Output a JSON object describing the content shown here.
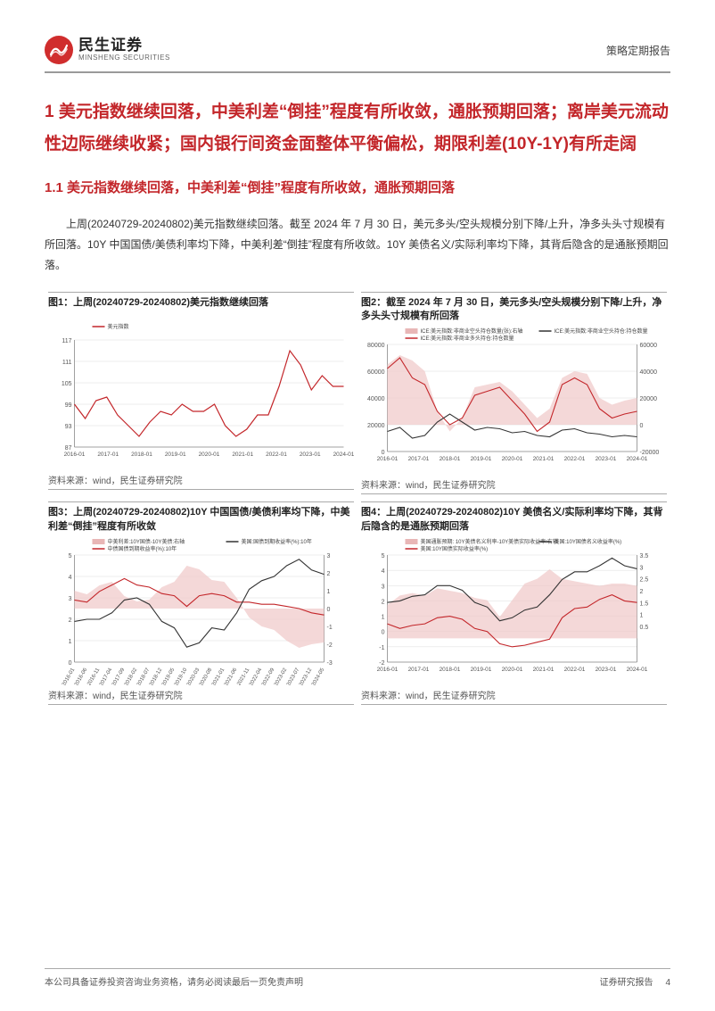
{
  "header": {
    "logo_cn": "民生证券",
    "logo_en": "MINSHENG SECURITIES",
    "report_type": "策略定期报告"
  },
  "headings": {
    "h1": "1 美元指数继续回落，中美利差“倒挂”程度有所收敛，通胀预期回落；离岸美元流动性边际继续收紧；国内银行间资金面整体平衡偏松，期限利差(10Y-1Y)有所走阔",
    "h2": "1.1 美元指数继续回落，中美利差“倒挂”程度有所收敛，通胀预期回落"
  },
  "paragraph": "上周(20240729-20240802)美元指数继续回落。截至 2024 年 7 月 30 日，美元多头/空头规模分别下降/上升，净多头头寸规模有所回落。10Y 中国国债/美债利率均下降，中美利差“倒挂”程度有所收敛。10Y 美债名义/实际利率均下降，其背后隐含的是通胀预期回落。",
  "figures": {
    "fig1": {
      "title": "图1：上周(20240729-20240802)美元指数继续回落",
      "source": "资料来源：wind，民生证券研究院",
      "chart": {
        "type": "line",
        "legend": [
          "美元指数"
        ],
        "legend_colors": [
          "#c3262a"
        ],
        "ylim": [
          87,
          117
        ],
        "ytick_step": 6,
        "yticks": [
          87,
          93,
          99,
          105,
          111,
          117
        ],
        "xticks": [
          "2016-01",
          "2017-01",
          "2018-01",
          "2019-01",
          "2020-01",
          "2021-01",
          "2022-01",
          "2023-01",
          "2024-01"
        ],
        "background": "#ffffff",
        "grid_color": "#dcdcdc",
        "axis_color": "#888888",
        "series": [
          {
            "color": "#c3262a",
            "width": 1.2,
            "x": [
              0,
              0.04,
              0.08,
              0.12,
              0.16,
              0.2,
              0.24,
              0.28,
              0.32,
              0.36,
              0.4,
              0.44,
              0.48,
              0.52,
              0.56,
              0.6,
              0.64,
              0.68,
              0.72,
              0.76,
              0.8,
              0.84,
              0.88,
              0.92,
              0.96,
              1.0
            ],
            "y": [
              99,
              95,
              100,
              101,
              96,
              93,
              90,
              94,
              97,
              96,
              99,
              97,
              97,
              99,
              93,
              90,
              92,
              96,
              96,
              104,
              114,
              110,
              103,
              107,
              104,
              104
            ]
          }
        ]
      }
    },
    "fig2": {
      "title": "图2：截至 2024 年 7 月 30 日，美元多头/空头规模分别下降/上升，净多头头寸规模有所回落",
      "source": "资料来源：wind，民生证券研究院",
      "chart": {
        "type": "area-dual-axis",
        "legend": [
          "ICE:美元指数:非商业空头持仓数量(张):右轴",
          "ICE:美元指数:非商业多头持仓:持仓数量",
          "ICE:美元指数:非商业空头持仓:持仓数量"
        ],
        "legend_colors": [
          "#e8b6b6",
          "#c3262a",
          "#333333"
        ],
        "ylim_left": [
          0,
          80000
        ],
        "ytick_left": [
          0,
          20000,
          40000,
          60000,
          80000
        ],
        "ylim_right": [
          -20000,
          60000
        ],
        "ytick_right": [
          -20000,
          0,
          20000,
          40000,
          60000
        ],
        "xticks": [
          "2016-01",
          "2017-01",
          "2018-01",
          "2019-01",
          "2020-01",
          "2021-01",
          "2022-01",
          "2023-01",
          "2024-01"
        ],
        "background": "#ffffff",
        "grid_color": "#dcdcdc",
        "axis_color": "#888888",
        "area": {
          "color": "#f0c8c8",
          "opacity": 0.7,
          "x": [
            0,
            0.05,
            0.1,
            0.15,
            0.2,
            0.25,
            0.3,
            0.35,
            0.4,
            0.45,
            0.5,
            0.55,
            0.6,
            0.65,
            0.7,
            0.75,
            0.8,
            0.85,
            0.9,
            0.95,
            1.0
          ],
          "y": [
            45000,
            52000,
            48000,
            40000,
            10000,
            -5000,
            5000,
            28000,
            30000,
            32000,
            25000,
            15000,
            5000,
            12000,
            35000,
            40000,
            38000,
            20000,
            15000,
            18000,
            20000
          ]
        },
        "series": [
          {
            "color": "#c3262a",
            "width": 1.1,
            "x": [
              0,
              0.05,
              0.1,
              0.15,
              0.2,
              0.25,
              0.3,
              0.35,
              0.4,
              0.45,
              0.5,
              0.55,
              0.6,
              0.65,
              0.7,
              0.75,
              0.8,
              0.85,
              0.9,
              0.95,
              1.0
            ],
            "y": [
              62000,
              70000,
              55000,
              50000,
              30000,
              20000,
              25000,
              42000,
              45000,
              48000,
              38000,
              28000,
              15000,
              22000,
              50000,
              55000,
              50000,
              32000,
              25000,
              28000,
              30000
            ]
          },
          {
            "color": "#333333",
            "width": 1.1,
            "x": [
              0,
              0.05,
              0.1,
              0.15,
              0.2,
              0.25,
              0.3,
              0.35,
              0.4,
              0.45,
              0.5,
              0.55,
              0.6,
              0.65,
              0.7,
              0.75,
              0.8,
              0.85,
              0.9,
              0.95,
              1.0
            ],
            "y": [
              15000,
              18000,
              10000,
              12000,
              22000,
              28000,
              22000,
              16000,
              18000,
              17000,
              14000,
              15000,
              12000,
              11000,
              16000,
              17000,
              14000,
              13000,
              11000,
              12000,
              11000
            ]
          }
        ]
      }
    },
    "fig3": {
      "title": "图3：上周(20240729-20240802)10Y 中国国债/美债利率均下降，中美利差“倒挂”程度有所收敛",
      "source": "资料来源：wind，民生证券研究院",
      "chart": {
        "type": "area-dual-axis",
        "legend": [
          "中美利差:10Y国债-10Y美债:右轴",
          "中债国债到期收益率(%):10年",
          "美国:国债到期收益率(%):10年"
        ],
        "legend_colors": [
          "#e8b6b6",
          "#c3262a",
          "#333333"
        ],
        "ylim_left": [
          0,
          5
        ],
        "ytick_left": [
          0,
          1,
          2,
          3,
          4,
          5
        ],
        "ylim_right": [
          -3,
          3
        ],
        "ytick_right": [
          -3,
          -2,
          -1,
          0,
          1,
          2,
          3
        ],
        "xticks": [
          "2016-01",
          "2016-06",
          "2016-11",
          "2017-04",
          "2017-09",
          "2018-02",
          "2018-07",
          "2018-12",
          "2019-05",
          "2019-10",
          "2020-03",
          "2020-08",
          "2021-01",
          "2021-06",
          "2021-11",
          "2022-04",
          "2022-09",
          "2023-02",
          "2023-07",
          "2023-12",
          "2024-05"
        ],
        "xticks_rot": -60,
        "background": "#ffffff",
        "grid_color": "#dcdcdc",
        "axis_color": "#888888",
        "area": {
          "color": "#f0c8c8",
          "opacity": 0.7,
          "x": [
            0,
            0.05,
            0.1,
            0.15,
            0.2,
            0.25,
            0.3,
            0.35,
            0.4,
            0.45,
            0.5,
            0.55,
            0.6,
            0.65,
            0.7,
            0.75,
            0.8,
            0.85,
            0.9,
            0.95,
            1.0
          ],
          "y": [
            1.0,
            0.8,
            1.3,
            1.5,
            0.7,
            0.4,
            0.5,
            1.2,
            1.5,
            2.4,
            2.2,
            1.6,
            1.5,
            0.6,
            -0.5,
            -1.0,
            -1.2,
            -1.8,
            -2.2,
            -2.0,
            -1.9
          ]
        },
        "series": [
          {
            "color": "#c3262a",
            "width": 1.1,
            "x": [
              0,
              0.05,
              0.1,
              0.15,
              0.2,
              0.25,
              0.3,
              0.35,
              0.4,
              0.45,
              0.5,
              0.55,
              0.6,
              0.65,
              0.7,
              0.75,
              0.8,
              0.85,
              0.9,
              0.95,
              1.0
            ],
            "y": [
              2.9,
              2.8,
              3.3,
              3.6,
              3.9,
              3.6,
              3.5,
              3.2,
              3.1,
              2.6,
              3.1,
              3.2,
              3.1,
              2.8,
              2.8,
              2.7,
              2.7,
              2.6,
              2.5,
              2.3,
              2.2
            ]
          },
          {
            "color": "#333333",
            "width": 1.1,
            "x": [
              0,
              0.05,
              0.1,
              0.15,
              0.2,
              0.25,
              0.3,
              0.35,
              0.4,
              0.45,
              0.5,
              0.55,
              0.6,
              0.65,
              0.7,
              0.75,
              0.8,
              0.85,
              0.9,
              0.95,
              1.0
            ],
            "y": [
              1.9,
              2.0,
              2.0,
              2.3,
              2.9,
              3.0,
              2.7,
              1.9,
              1.6,
              0.7,
              0.9,
              1.6,
              1.5,
              2.3,
              3.4,
              3.8,
              4.0,
              4.5,
              4.8,
              4.3,
              4.1
            ]
          }
        ]
      }
    },
    "fig4": {
      "title": "图4：上周(20240729-20240802)10Y 美债名义/实际利率均下降，其背后隐含的是通胀预期回落",
      "source": "资料来源：wind，民生证券研究院",
      "chart": {
        "type": "area-dual-axis",
        "legend": [
          "美国通胀预期: 10Y美债名义利率-10Y美债实际收益率:右轴",
          "美国:10Y国债实际收益率(%)",
          "美国:10Y国债名义收益率(%)"
        ],
        "legend_colors": [
          "#e8b6b6",
          "#c3262a",
          "#333333"
        ],
        "ylim_left": [
          -2,
          5
        ],
        "ytick_left": [
          -2,
          -1,
          0,
          1,
          2,
          3,
          4,
          5
        ],
        "ylim_right": [
          -1,
          3.5
        ],
        "ytick_right": [
          0.5,
          1.0,
          1.5,
          2.0,
          2.5,
          3.0,
          3.5
        ],
        "xticks": [
          "2016-01",
          "2017-01",
          "2018-01",
          "2019-01",
          "2020-01",
          "2021-01",
          "2022-01",
          "2023-01",
          "2024-01"
        ],
        "background": "#ffffff",
        "grid_color": "#dcdcdc",
        "axis_color": "#888888",
        "area": {
          "color": "#f0c8c8",
          "opacity": 0.7,
          "x": [
            0,
            0.05,
            0.1,
            0.15,
            0.2,
            0.25,
            0.3,
            0.35,
            0.4,
            0.45,
            0.5,
            0.55,
            0.6,
            0.65,
            0.7,
            0.75,
            0.8,
            0.85,
            0.9,
            0.95,
            1.0
          ],
          "y": [
            1.4,
            1.8,
            1.9,
            1.8,
            2.1,
            2.0,
            1.9,
            1.7,
            1.6,
            0.9,
            1.6,
            2.3,
            2.5,
            2.9,
            2.5,
            2.4,
            2.3,
            2.2,
            2.3,
            2.3,
            2.2
          ]
        },
        "series": [
          {
            "color": "#c3262a",
            "width": 1.1,
            "x": [
              0,
              0.05,
              0.1,
              0.15,
              0.2,
              0.25,
              0.3,
              0.35,
              0.4,
              0.45,
              0.5,
              0.55,
              0.6,
              0.65,
              0.7,
              0.75,
              0.8,
              0.85,
              0.9,
              0.95,
              1.0
            ],
            "y": [
              0.5,
              0.2,
              0.4,
              0.5,
              0.9,
              1.0,
              0.8,
              0.2,
              0.0,
              -0.8,
              -1.0,
              -0.9,
              -0.7,
              -0.5,
              0.9,
              1.5,
              1.6,
              2.1,
              2.4,
              2.0,
              1.9
            ]
          },
          {
            "color": "#333333",
            "width": 1.1,
            "x": [
              0,
              0.05,
              0.1,
              0.15,
              0.2,
              0.25,
              0.3,
              0.35,
              0.4,
              0.45,
              0.5,
              0.55,
              0.6,
              0.65,
              0.7,
              0.75,
              0.8,
              0.85,
              0.9,
              0.95,
              1.0
            ],
            "y": [
              1.9,
              2.0,
              2.3,
              2.4,
              3.0,
              3.0,
              2.7,
              1.9,
              1.6,
              0.7,
              0.9,
              1.4,
              1.6,
              2.4,
              3.4,
              3.9,
              3.9,
              4.3,
              4.8,
              4.3,
              4.1
            ]
          }
        ]
      }
    }
  },
  "footer": {
    "left": "本公司具备证券投资咨询业务资格，请务必阅读最后一页免责声明",
    "right": "证券研究报告",
    "page": "4"
  },
  "style": {
    "accent": "#c3262a",
    "text": "#333333",
    "grid": "#dcdcdc"
  }
}
